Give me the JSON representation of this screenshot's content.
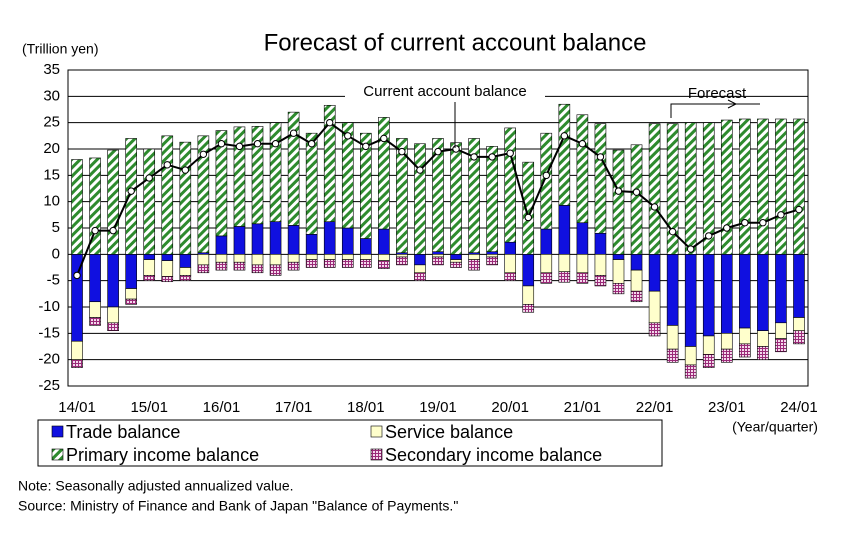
{
  "chart_data": {
    "type": "bar",
    "stacked": true,
    "title": "Forecast of current account balance",
    "y_label": "(Trillion yen)",
    "x_label": "(Year/quarter)",
    "annotations": [
      "Forecast"
    ],
    "notes": [
      "Note: Seasonally adjusted annualized value.",
      "Source: Ministry of Finance and Bank of Japan \"Balance of Payments.\""
    ],
    "categories": [
      "14/01",
      null,
      null,
      null,
      "15/01",
      null,
      null,
      null,
      "16/01",
      null,
      null,
      null,
      "17/01",
      null,
      null,
      null,
      "18/01",
      null,
      null,
      null,
      "19/01",
      null,
      null,
      null,
      "20/01",
      null,
      null,
      null,
      "21/01",
      null,
      null,
      null,
      "22/01",
      null,
      null,
      null,
      "23/01",
      null,
      null,
      null,
      "24/01"
    ],
    "ylim": [
      -25,
      35
    ],
    "yticks": [
      -25,
      -20,
      -15,
      -10,
      -5,
      0,
      5,
      10,
      15,
      20,
      25,
      30,
      35
    ],
    "grid": true,
    "series": [
      {
        "name": "Trade balance",
        "type": "bar",
        "color": "#1010e0",
        "pattern": "solid",
        "values": [
          -16.5,
          -9,
          -10,
          -6.5,
          -1,
          -1.2,
          -2.5,
          0.3,
          3.5,
          5.3,
          5.8,
          6.2,
          5.5,
          3.8,
          6.2,
          5,
          3,
          4.8,
          0.3,
          -2,
          0.5,
          -1,
          0.3,
          0.5,
          2.3,
          -6,
          4.8,
          9.3,
          6,
          4,
          -1,
          -3,
          -7,
          -13.5,
          -17.5,
          -15.5,
          -15,
          -14,
          -14.5,
          -13,
          -12
        ]
      },
      {
        "name": "Service balance",
        "type": "bar",
        "color": "#ffffcc",
        "pattern": "solid",
        "values": [
          -3.5,
          -3,
          -3,
          -2,
          -3,
          -3,
          -1.5,
          -2,
          -1.5,
          -1.5,
          -2,
          -2,
          -1.5,
          -1,
          -1,
          -1,
          -1,
          -1.2,
          -0.5,
          -1.5,
          -0.5,
          -0.5,
          -1,
          -0.5,
          -3.5,
          -3.5,
          -3.5,
          -3.3,
          -3.5,
          -4,
          -4.5,
          -4,
          -6,
          -4.5,
          -3.5,
          -3.5,
          -3,
          -3,
          -3,
          -3,
          -2.5
        ]
      },
      {
        "name": "Primary income balance",
        "type": "bar",
        "color": "#2e8b2e",
        "pattern": "hatch",
        "values": [
          18,
          18.3,
          19.8,
          22,
          20,
          22.5,
          21.3,
          22.2,
          20,
          18.9,
          18.5,
          18.8,
          21.5,
          19.2,
          22.1,
          20,
          20,
          21.2,
          21.7,
          21,
          21.5,
          21.2,
          21.7,
          20,
          21.7,
          17.5,
          18.2,
          19.2,
          20.5,
          20.8,
          19.8,
          20.8,
          24.8,
          24.8,
          25,
          25,
          25.5,
          25.7,
          25.7,
          25.7,
          25.7
        ]
      },
      {
        "name": "Secondary income balance",
        "type": "bar",
        "color": "#9a2a78",
        "pattern": "grid",
        "values": [
          -1.5,
          -1.5,
          -1.5,
          -1,
          -1,
          -1,
          -1,
          -1.5,
          -1.5,
          -1.5,
          -1.5,
          -2,
          -1.5,
          -1.5,
          -1.5,
          -1.5,
          -1.5,
          -1.5,
          -1.5,
          -1.5,
          -1.5,
          -1,
          -2,
          -1.5,
          -1.5,
          -1.5,
          -2,
          -2,
          -2,
          -2,
          -2,
          -2,
          -2.5,
          -2.5,
          -2.5,
          -2.5,
          -2.5,
          -2.5,
          -2.5,
          -2.5,
          -2.5
        ]
      },
      {
        "name": "Current account balance",
        "type": "line",
        "color": "#000000",
        "values": [
          -4,
          4.5,
          4.5,
          12,
          14.5,
          17,
          16,
          19,
          21,
          20.5,
          21,
          21,
          23,
          21,
          25,
          22.5,
          20.5,
          22,
          19.5,
          16,
          19.5,
          20,
          18.5,
          18.5,
          19.2,
          7,
          15,
          22.5,
          21,
          18.5,
          12,
          11.8,
          9,
          4.3,
          1,
          3.5,
          5,
          6,
          6,
          7.5,
          8.5
        ]
      }
    ]
  }
}
